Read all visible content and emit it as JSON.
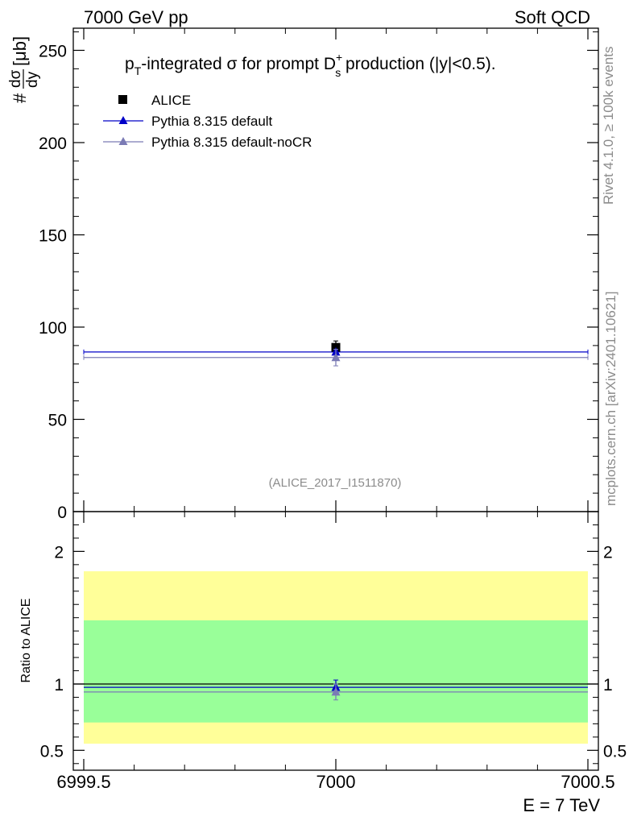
{
  "header": {
    "left": "7000 GeV pp",
    "right": "Soft QCD"
  },
  "side": {
    "rivet": "Rivet 4.1.0, ≥ 100k events",
    "mcplots": "mcplots.cern.ch [arXiv:2401.10621]"
  },
  "colors": {
    "alice": "#000000",
    "pythia": "#0000c8",
    "nocr": "#7b7bb5",
    "band_inner": "#99ff99",
    "band_outer": "#ffff99"
  },
  "chart_data": {
    "type": "scatter",
    "title": "pT-integrated σ for prompt Ds+ production (|y|<0.5).",
    "title_parts": {
      "p": "p",
      "p_sub": "T",
      "mid": "-integrated ",
      "sigma": "σ",
      "for": " for prompt D",
      "d_sup": "+",
      "d_sub": "s",
      "end": " production (|y|<0.5)."
    },
    "ylabel": "#dσ/dy [μb]",
    "ylabel_parts": {
      "hash": "#",
      "num": "dσ",
      "den": "dy",
      "unit": "[μb]"
    },
    "xlabel": "E = 7 TeV",
    "ratio_ylabel": "Ratio to ALICE",
    "watermark": "(ALICE_2017_I1511870)",
    "xlim": [
      6999.5,
      7000.5
    ],
    "ylim": [
      0,
      262
    ],
    "ratio_ylim": [
      0.35,
      2.3
    ],
    "x_ticks": [
      {
        "v": 6999.5,
        "label": "6999.5"
      },
      {
        "v": 7000,
        "label": "7000"
      },
      {
        "v": 7000.5,
        "label": "7000.5"
      }
    ],
    "y_ticks": [
      {
        "v": 0,
        "label": "0"
      },
      {
        "v": 50,
        "label": "50"
      },
      {
        "v": 100,
        "label": "100"
      },
      {
        "v": 150,
        "label": "150"
      },
      {
        "v": 200,
        "label": "200"
      },
      {
        "v": 250,
        "label": "250"
      }
    ],
    "ratio_ticks": [
      {
        "v": 0.5,
        "label": "0.5"
      },
      {
        "v": 1,
        "label": "1"
      },
      {
        "v": 2,
        "label": "2"
      }
    ],
    "legend": [
      {
        "name": "ALICE",
        "marker": "square"
      },
      {
        "name": "Pythia 8.315 default",
        "marker": "triangle"
      },
      {
        "name": "Pythia 8.315 default-noCR",
        "marker": "triangle"
      }
    ],
    "series": [
      {
        "name": "ALICE",
        "x": 7000,
        "y": 89,
        "err": 3.5
      },
      {
        "name": "Pythia 8.315 default",
        "x": 7000,
        "y": 86.5,
        "err": 1.2
      },
      {
        "name": "Pythia 8.315 default-noCR",
        "x": 7000,
        "y": 83.5,
        "err": 4.5
      }
    ],
    "ratio": {
      "bands": [
        {
          "name": "outer",
          "lo": 0.55,
          "hi": 1.85
        },
        {
          "name": "inner",
          "lo": 0.71,
          "hi": 1.48
        }
      ],
      "series": [
        {
          "name": "Pythia 8.315 default",
          "y": 0.975,
          "err": 0.055
        },
        {
          "name": "Pythia 8.315 default-noCR",
          "y": 0.94,
          "err": 0.06
        }
      ]
    }
  }
}
